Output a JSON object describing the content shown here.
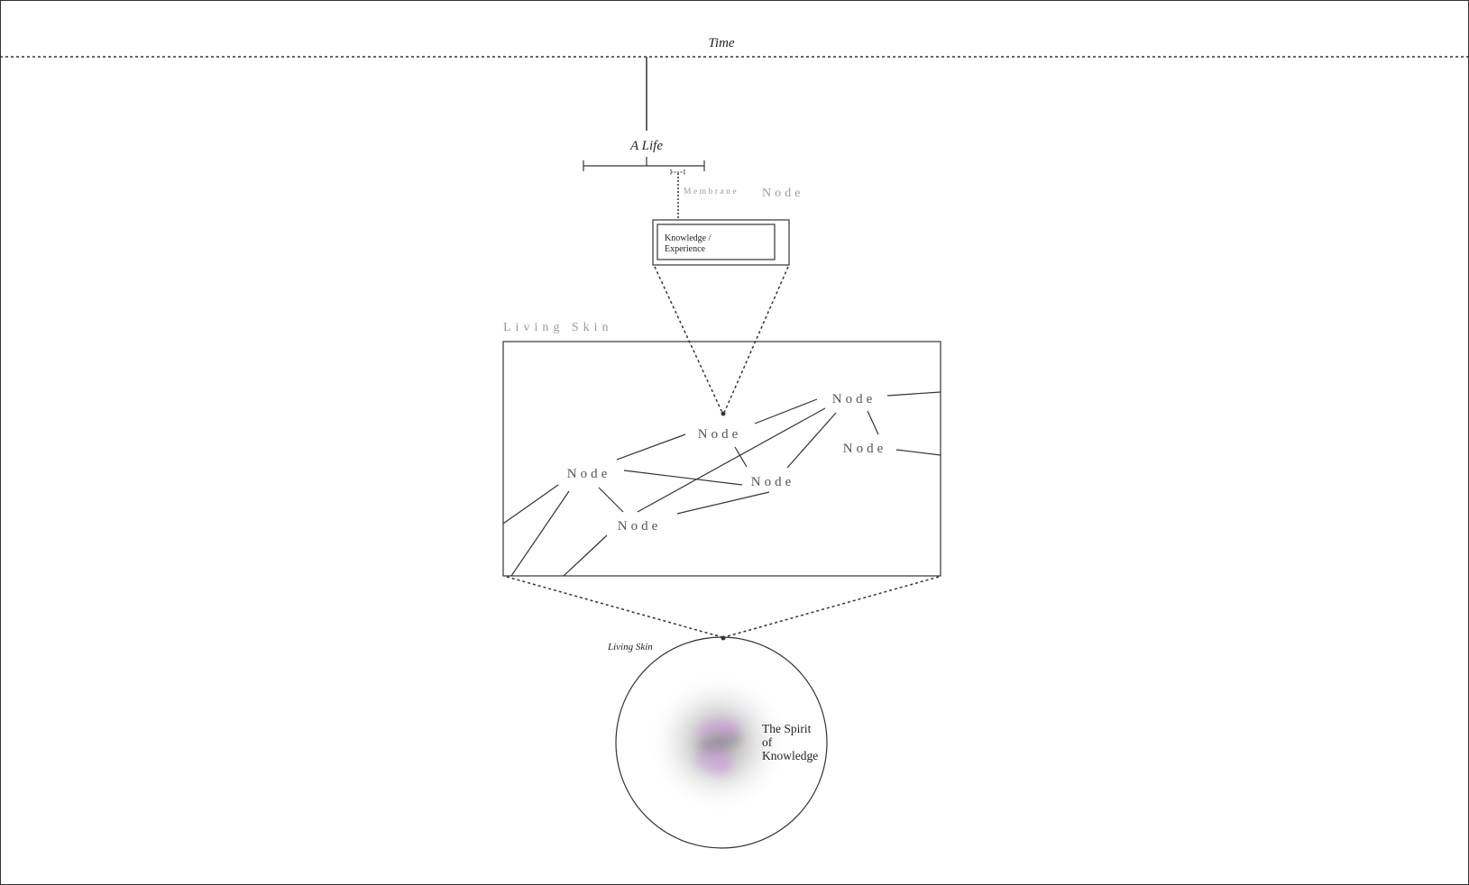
{
  "timeline": {
    "label": "Time"
  },
  "life": {
    "label": "A Life"
  },
  "membrane": {
    "label": "Membrane"
  },
  "top_node": {
    "label": "Node"
  },
  "knowledge_box": {
    "line1": "Knowledge /",
    "line2": "Experience"
  },
  "living_skin_box": {
    "label": "Living Skin"
  },
  "network": {
    "nodes": [
      {
        "label": "Node"
      },
      {
        "label": "Node"
      },
      {
        "label": "Node"
      },
      {
        "label": "Node"
      },
      {
        "label": "Node"
      },
      {
        "label": "Node"
      }
    ]
  },
  "sphere": {
    "skin_label": "Living Skin",
    "spirit_line1": "The Spirit",
    "spirit_line2": "of",
    "spirit_line3": "Knowledge"
  },
  "colors": {
    "line": "#333333",
    "muted_text": "#9a9a9a",
    "dark_text": "#222222",
    "node_text": "#555555",
    "accent": "#cc99dd"
  }
}
